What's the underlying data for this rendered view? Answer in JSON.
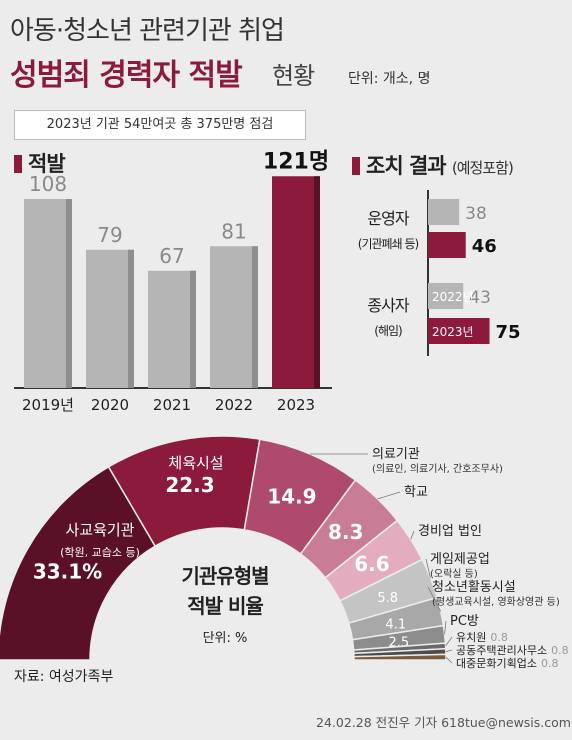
{
  "header": {
    "line1": "아동·청소년 관련기관 취업",
    "line2": "성범죄 경력자 적발",
    "line3": "현황",
    "unit": "단위: 개소, 명",
    "note": "2023년 기관 54만여곳 총 375만명 점검"
  },
  "left_title": "적발",
  "right_title": "조치 결과",
  "right_subtitle": "(예정포함)",
  "right_labels": {
    "op_main": "운영자",
    "op_sub": "(기관폐쇄 등)",
    "emp_main": "종사자",
    "emp_sub": "(해임)"
  },
  "pie_center": {
    "line1": "기관유형별",
    "line2": "적발 비율",
    "unit": "단위: %"
  },
  "footer": {
    "source": "자료: 여성가족부",
    "credit": "24.02.28 전진우 기자 618tue@newsis.com"
  },
  "colors": {
    "accent": "#8b1a3b",
    "bar_gray": "#b5b5b5",
    "bg": "#ececec"
  },
  "chart_data": [
    {
      "type": "bar",
      "categories": [
        "2019년",
        "2020",
        "2021",
        "2022",
        "2023"
      ],
      "values": [
        108,
        79,
        67,
        81,
        121
      ],
      "value_labels": [
        "108",
        "79",
        "67",
        "81",
        "121명"
      ],
      "highlight_index": 4
    },
    {
      "type": "bar",
      "orientation": "horizontal",
      "categories": [
        "운영자",
        "종사자"
      ],
      "series": [
        {
          "name": "2022년",
          "values": [
            38,
            43
          ]
        },
        {
          "name": "2023년",
          "values": [
            46,
            75
          ]
        }
      ]
    },
    {
      "type": "pie",
      "style": "half-donut",
      "unit": "%",
      "slices": [
        {
          "label": "사교육기관",
          "sublabel": "(학원, 교습소 등)",
          "value": 33.1,
          "value_text": "33.1%",
          "color": "#5a1027"
        },
        {
          "label": "체육시설",
          "sublabel": "",
          "value": 22.3,
          "value_text": "22.3",
          "color": "#8b1a3b"
        },
        {
          "label": "의료기관",
          "sublabel": "(의료인, 의료기사, 간호조무사)",
          "value": 14.9,
          "value_text": "14.9",
          "color": "#ad4a6d"
        },
        {
          "label": "학교",
          "sublabel": "",
          "value": 8.3,
          "value_text": "8.3",
          "color": "#c97c96"
        },
        {
          "label": "경비업 법인",
          "sublabel": "",
          "value": 6.6,
          "value_text": "6.6",
          "color": "#e4adbf"
        },
        {
          "label": "게임제공업",
          "sublabel": "(오락실 등)",
          "value": 5.8,
          "value_text": "5.8",
          "color": "#c4c4c4"
        },
        {
          "label": "청소년활동시설",
          "sublabel": "(평생교육시설, 영화상영관 등)",
          "value": 4.1,
          "value_text": "4.1",
          "color": "#a8a8a8"
        },
        {
          "label": "PC방",
          "sublabel": "",
          "value": 2.5,
          "value_text": "2.5",
          "color": "#8c8c8c"
        },
        {
          "label": "유치원",
          "sublabel": "",
          "value": 0.8,
          "value_text": "0.8",
          "color": "#6a6a6a"
        },
        {
          "label": "공동주택관리사무소",
          "sublabel": "",
          "value": 0.8,
          "value_text": "0.8",
          "color": "#4c4c4c"
        },
        {
          "label": "대중문화기획업소",
          "sublabel": "",
          "value": 0.8,
          "value_text": "0.8",
          "color": "#7a5a3c"
        }
      ]
    }
  ]
}
